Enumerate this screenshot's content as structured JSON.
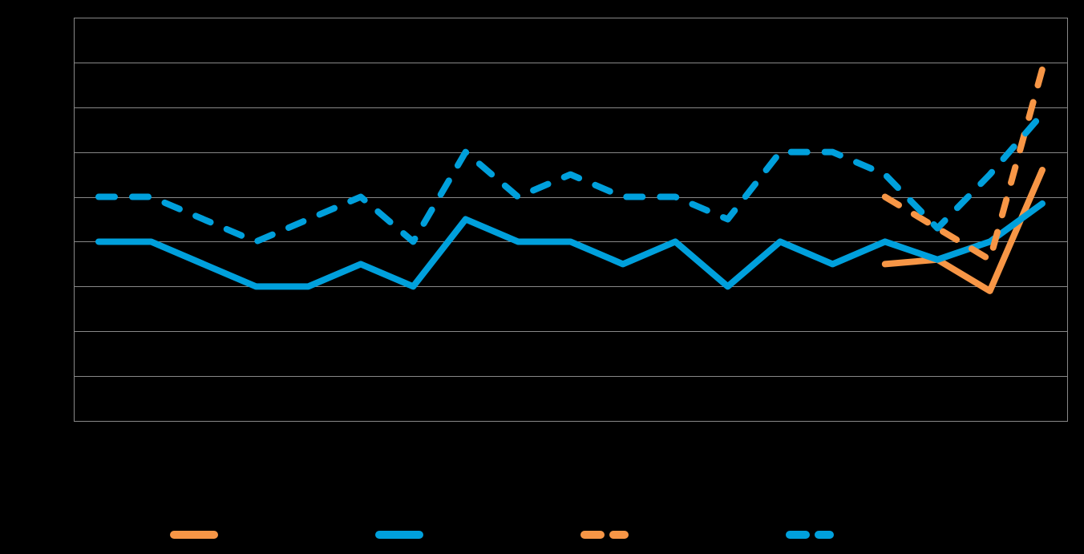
{
  "chart_data": {
    "type": "line",
    "categories": [
      null,
      null,
      null,
      null,
      null,
      null,
      null,
      null,
      null,
      null,
      null,
      null,
      null,
      null,
      null,
      null,
      null,
      null,
      null
    ],
    "series": [
      {
        "color": "#f79646",
        "dash": false,
        "values": [
          null,
          null,
          null,
          null,
          null,
          null,
          null,
          null,
          null,
          null,
          null,
          null,
          null,
          null,
          null,
          3.5,
          3.6,
          2.9,
          5.6
        ]
      },
      {
        "color": "#00a0dc",
        "dash": false,
        "values": [
          4,
          4,
          3.5,
          3,
          3,
          3.5,
          3,
          4.5,
          4,
          4,
          3.5,
          4,
          3,
          4,
          3.5,
          4,
          3.6,
          4,
          4.85
        ]
      },
      {
        "color": "#f79646",
        "dash": true,
        "values": [
          null,
          null,
          null,
          null,
          null,
          null,
          null,
          null,
          null,
          null,
          null,
          null,
          null,
          null,
          null,
          5,
          4.3,
          3.6,
          7.85
        ]
      },
      {
        "color": "#00a0dc",
        "dash": true,
        "values": [
          5,
          5,
          4.5,
          4,
          4.5,
          5,
          4,
          6,
          5,
          5.5,
          5,
          5,
          4.5,
          6,
          6,
          5.5,
          4.3,
          5.5,
          6.85
        ]
      }
    ],
    "ylim": [
      0,
      9
    ],
    "yticks": [
      0,
      1,
      2,
      3,
      4,
      5,
      6,
      7,
      8,
      9
    ],
    "grid": true
  }
}
